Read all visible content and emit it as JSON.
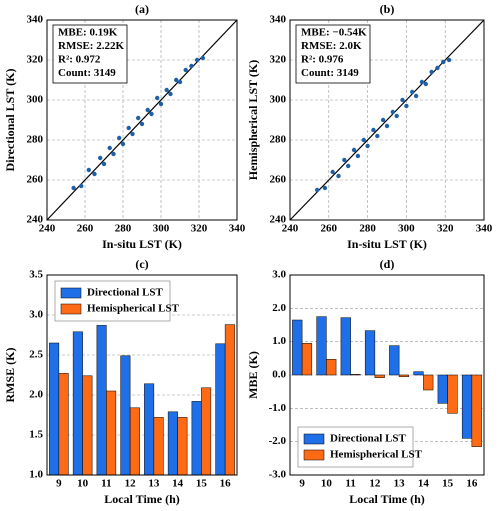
{
  "chart_data": [
    {
      "type": "scatter",
      "title": "(a)",
      "xlabel": "In-situ LST (K)",
      "ylabel": "Directional LST (K)",
      "xlim": [
        240,
        340
      ],
      "ylim": [
        240,
        340
      ],
      "xticks": [
        240,
        260,
        280,
        300,
        320,
        340
      ],
      "yticks": [
        240,
        260,
        280,
        300,
        320,
        340
      ],
      "grid": true,
      "annotations": [
        "MBE: 0.19K",
        "RMSE: 2.22K",
        "R²: 0.972",
        "Count: 3149"
      ],
      "color": "#1f5fa8",
      "x": [
        254,
        258,
        262,
        265,
        268,
        270,
        273,
        275,
        278,
        280,
        283,
        285,
        288,
        290,
        293,
        295,
        298,
        300,
        303,
        305,
        308,
        310,
        313,
        316,
        319,
        322
      ],
      "y": [
        256,
        257,
        265,
        263,
        271,
        268,
        276,
        273,
        281,
        278,
        286,
        283,
        291,
        288,
        295,
        293,
        301,
        298,
        305,
        303,
        310,
        309,
        315,
        317,
        320,
        321
      ]
    },
    {
      "type": "scatter",
      "title": "(b)",
      "xlabel": "In-situ LST (K)",
      "ylabel": "Hemispherical LST (K)",
      "xlim": [
        240,
        340
      ],
      "ylim": [
        240,
        340
      ],
      "xticks": [
        240,
        260,
        280,
        300,
        320,
        340
      ],
      "yticks": [
        240,
        260,
        280,
        300,
        320,
        340
      ],
      "grid": true,
      "annotations": [
        "MBE: −0.54K",
        "RMSE: 2.0K",
        "R²: 0.976",
        "Count: 3149"
      ],
      "color": "#1f5fa8",
      "x": [
        254,
        258,
        262,
        265,
        268,
        270,
        273,
        275,
        278,
        280,
        283,
        285,
        288,
        290,
        293,
        295,
        298,
        300,
        303,
        305,
        308,
        310,
        313,
        316,
        319,
        322
      ],
      "y": [
        255,
        256,
        264,
        262,
        270,
        267,
        275,
        272,
        280,
        277,
        285,
        282,
        290,
        287,
        294,
        292,
        300,
        297,
        304,
        302,
        309,
        308,
        314,
        316,
        319,
        320
      ]
    },
    {
      "type": "bar",
      "title": "(c)",
      "xlabel": "Local Time (h)",
      "ylabel": "RMSE (K)",
      "categories": [
        "9",
        "10",
        "11",
        "12",
        "13",
        "14",
        "15",
        "16"
      ],
      "series": [
        {
          "name": "Directional LST",
          "color": "#1f6fe8",
          "values": [
            2.65,
            2.79,
            2.87,
            2.49,
            2.14,
            1.79,
            1.92,
            2.64
          ]
        },
        {
          "name": "Hemispherical LST",
          "color": "#ff6a14",
          "values": [
            2.27,
            2.24,
            2.05,
            1.84,
            1.72,
            1.72,
            2.09,
            2.88
          ]
        }
      ],
      "ylim": [
        1.0,
        3.5
      ],
      "yticks": [
        {
          "value": 1,
          "label": "1.0"
        },
        1.5,
        {
          "value": 2,
          "label": "2.0"
        },
        2.5,
        {
          "value": 3,
          "label": "3.0"
        },
        3.5
      ],
      "grid": true,
      "legend": "upper left"
    },
    {
      "type": "bar",
      "title": "(d)",
      "xlabel": "Local Time (h)",
      "ylabel": "MBE (K)",
      "categories": [
        "9",
        "10",
        "11",
        "12",
        "13",
        "14",
        "15",
        "16"
      ],
      "series": [
        {
          "name": "Directional LST",
          "color": "#1f6fe8",
          "values": [
            1.65,
            1.75,
            1.72,
            1.33,
            0.88,
            0.1,
            -0.85,
            -1.9
          ]
        },
        {
          "name": "Hemispherical LST",
          "color": "#ff6a14",
          "values": [
            0.95,
            0.47,
            0.02,
            -0.08,
            -0.05,
            -0.45,
            -1.15,
            -2.15
          ]
        }
      ],
      "ylim": [
        -3,
        3
      ],
      "yticks": [
        {
          "value": -3,
          "label": "-3.0"
        },
        {
          "value": -2,
          "label": "-2.0"
        },
        {
          "value": -1,
          "label": "-1.0"
        },
        {
          "value": 0,
          "label": "0.0"
        },
        {
          "value": 1,
          "label": "1.0"
        },
        {
          "value": 2,
          "label": "2.0"
        },
        {
          "value": 3,
          "label": "3.0"
        }
      ],
      "grid": true,
      "legend": "lower left"
    }
  ]
}
